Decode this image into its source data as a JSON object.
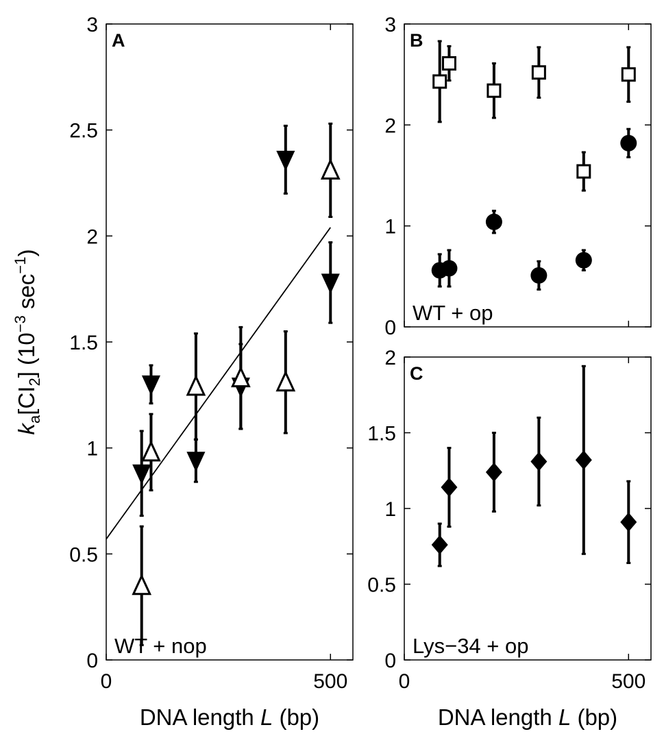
{
  "chart_data": [
    {
      "panel": "A",
      "type": "scatter",
      "annotation": "WT + nop",
      "xlabel_prefix": "DNA length ",
      "xlabel_var": "L",
      "xlabel_suffix": " (bp)",
      "ylabel": "k_a[CI_2] (10^-3 sec^-1)",
      "xlim": [
        0,
        550
      ],
      "ylim": [
        0,
        3
      ],
      "xticks": [
        0,
        500
      ],
      "xtick_labels": [
        "0",
        "500"
      ],
      "yticks": [
        0,
        0.5,
        1,
        1.5,
        2,
        2.5,
        3
      ],
      "ytick_labels": [
        "0",
        "0.5",
        "1",
        "1.5",
        "2",
        "2.5",
        "3"
      ],
      "series": [
        {
          "name": "filled down-triangle",
          "marker": "triangle-down-filled",
          "x": [
            79,
            100,
            200,
            300,
            400,
            500
          ],
          "y": [
            0.88,
            1.3,
            0.94,
            1.29,
            2.36,
            1.78
          ],
          "err": [
            0.2,
            0.09,
            0.1,
            0.2,
            0.16,
            0.19
          ]
        },
        {
          "name": "open up-triangle",
          "marker": "triangle-up-open",
          "x": [
            79,
            100,
            200,
            300,
            400,
            500
          ],
          "y": [
            0.35,
            0.98,
            1.29,
            1.33,
            1.31,
            2.31
          ],
          "err": [
            0.28,
            0.18,
            0.25,
            0.24,
            0.24,
            0.22
          ]
        }
      ],
      "fit_line": {
        "x": [
          0,
          500
        ],
        "y": [
          0.57,
          2.04
        ]
      }
    },
    {
      "panel": "B",
      "type": "scatter",
      "annotation": "WT + op",
      "xlim": [
        0,
        550
      ],
      "ylim": [
        0,
        3
      ],
      "yticks": [
        0,
        1,
        2,
        3
      ],
      "ytick_labels": [
        "0",
        "1",
        "2",
        "3"
      ],
      "series": [
        {
          "name": "open square",
          "marker": "square-open",
          "x": [
            79,
            100,
            200,
            300,
            400,
            500
          ],
          "y": [
            2.43,
            2.61,
            2.34,
            2.52,
            1.54,
            2.5
          ],
          "err": [
            0.4,
            0.17,
            0.27,
            0.25,
            0.19,
            0.27
          ]
        },
        {
          "name": "filled circle",
          "marker": "circle-filled",
          "x": [
            79,
            100,
            200,
            300,
            400,
            500
          ],
          "y": [
            0.56,
            0.58,
            1.04,
            0.51,
            0.66,
            1.82
          ],
          "err": [
            0.16,
            0.18,
            0.11,
            0.14,
            0.1,
            0.14
          ]
        }
      ]
    },
    {
      "panel": "C",
      "type": "scatter",
      "annotation": "Lys−34 + op",
      "xlabel_prefix": "DNA length ",
      "xlabel_var": "L",
      "xlabel_suffix": " (bp)",
      "xlim": [
        0,
        550
      ],
      "ylim": [
        0,
        2
      ],
      "xticks": [
        0,
        500
      ],
      "xtick_labels": [
        "0",
        "500"
      ],
      "yticks": [
        0,
        0.5,
        1,
        1.5,
        2
      ],
      "ytick_labels": [
        "0",
        "0.5",
        "1",
        "1.5",
        "2"
      ],
      "series": [
        {
          "name": "filled diamond",
          "marker": "diamond-filled",
          "x": [
            79,
            100,
            200,
            300,
            400,
            500
          ],
          "y": [
            0.76,
            1.14,
            1.24,
            1.31,
            1.32,
            0.91
          ],
          "err": [
            0.14,
            0.26,
            0.26,
            0.29,
            0.62,
            0.27
          ]
        }
      ]
    }
  ]
}
